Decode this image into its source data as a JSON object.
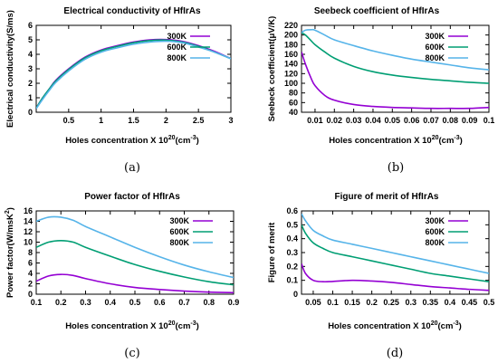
{
  "chart_data": [
    {
      "id": "a",
      "type": "line",
      "title": "Electrical conductivity of HfIrAs",
      "xlabel": "Holes concentration X 10",
      "xlabel_exp": "20",
      "xlabel_unit": "(cm",
      "xlabel_unit_exp": "-3",
      "xlabel_tail": ")",
      "ylabel": "Electrical conductivity(S/ms)",
      "caption": "(a)",
      "xlim": [
        0,
        3
      ],
      "ylim": [
        0,
        6
      ],
      "xticks": [
        "0.5",
        "1",
        "1.5",
        "2",
        "2.5",
        "3"
      ],
      "xtick_values": [
        0.5,
        1,
        1.5,
        2,
        2.5,
        3
      ],
      "yticks": [
        "0",
        "1",
        "2",
        "3",
        "4",
        "5",
        "6"
      ],
      "ytick_values": [
        0,
        1,
        2,
        3,
        4,
        5,
        6
      ],
      "legend_position": "top-right",
      "x": [
        0,
        0.1,
        0.2,
        0.3,
        0.5,
        0.75,
        1.0,
        1.25,
        1.5,
        1.75,
        2.0,
        2.25,
        2.5,
        2.75,
        3.0
      ],
      "series": [
        {
          "name": "300K",
          "color": "#9400d3",
          "values": [
            0.3,
            1.0,
            1.6,
            2.2,
            3.0,
            3.8,
            4.3,
            4.6,
            4.85,
            5.0,
            5.02,
            4.9,
            4.6,
            4.2,
            3.7
          ]
        },
        {
          "name": "600K",
          "color": "#009e73",
          "values": [
            0.3,
            1.0,
            1.6,
            2.15,
            2.95,
            3.75,
            4.25,
            4.55,
            4.8,
            4.95,
            4.98,
            4.85,
            4.55,
            4.15,
            3.7
          ]
        },
        {
          "name": "800K",
          "color": "#56b4e9",
          "values": [
            0.25,
            0.9,
            1.5,
            2.05,
            2.85,
            3.65,
            4.15,
            4.45,
            4.7,
            4.85,
            4.9,
            4.8,
            4.5,
            4.15,
            3.7
          ]
        }
      ]
    },
    {
      "id": "b",
      "type": "line",
      "title": "Seebeck coefficient of HfIrAs",
      "xlabel": "Holes concentration X 10",
      "xlabel_exp": "20",
      "xlabel_unit": "(cm",
      "xlabel_unit_exp": "-3",
      "xlabel_tail": ")",
      "ylabel": "Seebeck coefficient(μV/K)",
      "caption": "(b)",
      "xlim": [
        0.003,
        0.1
      ],
      "ylim": [
        40,
        220
      ],
      "xticks": [
        "0.01",
        "0.02",
        "0.03",
        "0.04",
        "0.05",
        "0.06",
        "0.07",
        "0.08",
        "0.09",
        "0.1"
      ],
      "xtick_values": [
        0.01,
        0.02,
        0.03,
        0.04,
        0.05,
        0.06,
        0.07,
        0.08,
        0.09,
        0.1
      ],
      "yticks": [
        "40",
        "60",
        "80",
        "100",
        "120",
        "140",
        "160",
        "180",
        "200",
        "220"
      ],
      "ytick_values": [
        40,
        60,
        80,
        100,
        120,
        140,
        160,
        180,
        200,
        220
      ],
      "legend_position": "top-right",
      "x": [
        0.003,
        0.005,
        0.008,
        0.01,
        0.015,
        0.02,
        0.03,
        0.04,
        0.05,
        0.06,
        0.07,
        0.08,
        0.09,
        0.1
      ],
      "series": [
        {
          "name": "300K",
          "color": "#9400d3",
          "values": [
            165,
            140,
            110,
            95,
            75,
            65,
            56,
            52,
            50,
            49,
            48,
            48,
            48,
            50
          ]
        },
        {
          "name": "600K",
          "color": "#009e73",
          "values": [
            205,
            200,
            188,
            180,
            165,
            152,
            135,
            124,
            117,
            112,
            108,
            105,
            102,
            100
          ]
        },
        {
          "name": "800K",
          "color": "#56b4e9",
          "values": [
            205,
            210,
            211,
            210,
            200,
            190,
            178,
            167,
            158,
            150,
            144,
            138,
            132,
            128
          ]
        }
      ]
    },
    {
      "id": "c",
      "type": "line",
      "title": "Power factor of HfIrAs",
      "xlabel": "Holes concentration X 10",
      "xlabel_exp": "20",
      "xlabel_unit": "(cm",
      "xlabel_unit_exp": "-3",
      "xlabel_tail": ")",
      "ylabel": "Power factor(W/msK",
      "ylabel_exp": "2",
      "ylabel_tail": ")",
      "caption": "(c)",
      "xlim": [
        0.1,
        0.9
      ],
      "ylim": [
        0,
        16
      ],
      "xticks": [
        "0.1",
        "0.2",
        "0.3",
        "0.4",
        "0.5",
        "0.6",
        "0.7",
        "0.8",
        "0.9"
      ],
      "xtick_values": [
        0.1,
        0.2,
        0.3,
        0.4,
        0.5,
        0.6,
        0.7,
        0.8,
        0.9
      ],
      "yticks": [
        "0",
        "2",
        "4",
        "6",
        "8",
        "10",
        "12",
        "14",
        "16"
      ],
      "ytick_values": [
        0,
        2,
        4,
        6,
        8,
        10,
        12,
        14,
        16
      ],
      "legend_position": "top-right",
      "x": [
        0.1,
        0.15,
        0.2,
        0.25,
        0.3,
        0.4,
        0.5,
        0.6,
        0.7,
        0.8,
        0.9
      ],
      "series": [
        {
          "name": "300K",
          "color": "#9400d3",
          "values": [
            2.5,
            3.5,
            3.8,
            3.6,
            3.0,
            2.0,
            1.3,
            0.9,
            0.6,
            0.4,
            0.3
          ]
        },
        {
          "name": "600K",
          "color": "#009e73",
          "values": [
            9.0,
            10.0,
            10.3,
            10.0,
            9.0,
            7.3,
            5.7,
            4.4,
            3.3,
            2.4,
            1.8
          ]
        },
        {
          "name": "800K",
          "color": "#56b4e9",
          "values": [
            14.0,
            14.8,
            14.8,
            14.2,
            13.0,
            11.0,
            9.0,
            7.2,
            5.6,
            4.3,
            3.2
          ]
        }
      ]
    },
    {
      "id": "d",
      "type": "line",
      "title": "Figure of merit of HfIrAs",
      "xlabel": "Holes concentration X 10",
      "xlabel_exp": "20",
      "xlabel_unit": "(cm",
      "xlabel_unit_exp": "-3",
      "xlabel_tail": ")",
      "ylabel": "Figure of merit",
      "caption": "(d)",
      "xlim": [
        0.02,
        0.5
      ],
      "ylim": [
        0,
        0.6
      ],
      "xticks": [
        "0.05",
        "0.1",
        "0.15",
        "0.2",
        "0.25",
        "0.3",
        "0.35",
        "0.4",
        "0.45",
        "0.5"
      ],
      "xtick_values": [
        0.05,
        0.1,
        0.15,
        0.2,
        0.25,
        0.3,
        0.35,
        0.4,
        0.45,
        0.5
      ],
      "yticks": [
        "0",
        "0.1",
        "0.2",
        "0.3",
        "0.4",
        "0.5",
        "0.6"
      ],
      "ytick_values": [
        0,
        0.1,
        0.2,
        0.3,
        0.4,
        0.5,
        0.6
      ],
      "legend_position": "top-right",
      "x": [
        0.02,
        0.03,
        0.05,
        0.075,
        0.1,
        0.15,
        0.2,
        0.25,
        0.3,
        0.35,
        0.4,
        0.45,
        0.5
      ],
      "series": [
        {
          "name": "300K",
          "color": "#9400d3",
          "values": [
            0.22,
            0.15,
            0.1,
            0.09,
            0.092,
            0.1,
            0.095,
            0.085,
            0.07,
            0.055,
            0.045,
            0.035,
            0.028
          ]
        },
        {
          "name": "600K",
          "color": "#009e73",
          "values": [
            0.5,
            0.44,
            0.37,
            0.33,
            0.3,
            0.27,
            0.24,
            0.21,
            0.18,
            0.15,
            0.13,
            0.11,
            0.09
          ]
        },
        {
          "name": "800K",
          "color": "#56b4e9",
          "values": [
            0.58,
            0.53,
            0.46,
            0.42,
            0.39,
            0.36,
            0.33,
            0.3,
            0.27,
            0.24,
            0.21,
            0.18,
            0.15
          ]
        }
      ]
    }
  ]
}
